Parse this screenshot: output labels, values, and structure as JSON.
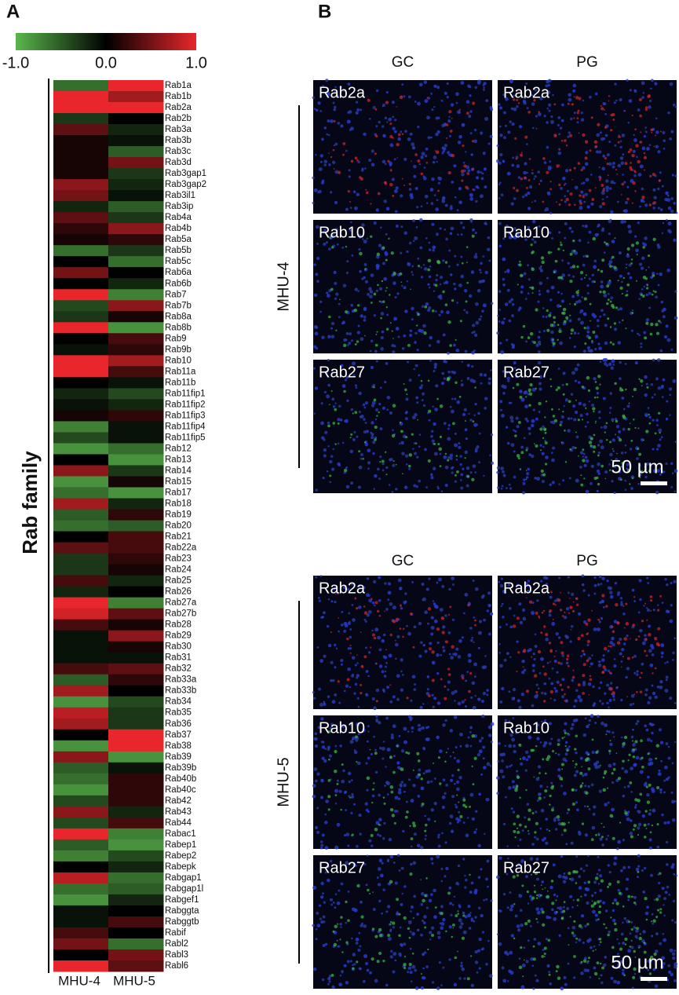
{
  "chart_data": {
    "type": "heatmap",
    "panel_label": "A",
    "y_label": "Rab family",
    "colorscale": [
      "#5ab74c",
      "#000000",
      "#e8262b"
    ],
    "zlim": [
      -1,
      1
    ],
    "zticks": [
      {
        "value": -1,
        "label": "-1.0"
      },
      {
        "value": 0,
        "label": "0.0"
      },
      {
        "value": 1,
        "label": "1.0"
      }
    ],
    "columns": [
      "MHU-4",
      "MHU-5"
    ],
    "categories": [
      "Rab1a",
      "Rab1b",
      "Rab2a",
      "Rab2b",
      "Rab3a",
      "Rab3b",
      "Rab3c",
      "Rab3d",
      "Rab3gap1",
      "Rab3gap2",
      "Rab3il1",
      "Rab3ip",
      "Rab4a",
      "Rab4b",
      "Rab5a",
      "Rab5b",
      "Rab5c",
      "Rab6a",
      "Rab6b",
      "Rab7",
      "Rab7b",
      "Rab8a",
      "Rab8b",
      "Rab9",
      "Rab9b",
      "Rab10",
      "Rab11a",
      "Rab11b",
      "Rab11fip1",
      "Rab11fip2",
      "Rab11fip3",
      "Rab11fip4",
      "Rab11fip5",
      "Rab12",
      "Rab13",
      "Rab14",
      "Rab15",
      "Rab17",
      "Rab18",
      "Rab19",
      "Rab20",
      "Rab21",
      "Rab22a",
      "Rab23",
      "Rab24",
      "Rab25",
      "Rab26",
      "Rab27a",
      "Rab27b",
      "Rab28",
      "Rab29",
      "Rab30",
      "Rab31",
      "Rab32",
      "Rab33a",
      "Rab33b",
      "Rab34",
      "Rab35",
      "Rab36",
      "Rab37",
      "Rab38",
      "Rab39",
      "Rab39b",
      "Rab40b",
      "Rab40c",
      "Rab42",
      "Rab43",
      "Rab44",
      "Rabac1",
      "Rabep1",
      "Rabep2",
      "Rabepk",
      "Rabgap1",
      "Rabgap1l",
      "Rabgef1",
      "Rabggta",
      "Rabggtb",
      "Rabif",
      "Rabl2",
      "Rabl3",
      "Rabl6"
    ],
    "values": [
      [
        -0.6,
        1.0
      ],
      [
        1.0,
        0.7
      ],
      [
        1.0,
        1.0
      ],
      [
        -0.3,
        0.0
      ],
      [
        0.4,
        -0.2
      ],
      [
        0.1,
        -0.1
      ],
      [
        0.1,
        -0.5
      ],
      [
        0.1,
        0.5
      ],
      [
        0.1,
        -0.3
      ],
      [
        0.6,
        -0.2
      ],
      [
        0.5,
        -0.1
      ],
      [
        -0.2,
        -0.5
      ],
      [
        0.4,
        -0.3
      ],
      [
        0.2,
        0.6
      ],
      [
        0.1,
        0.2
      ],
      [
        -0.6,
        -0.3
      ],
      [
        0.0,
        -0.6
      ],
      [
        0.5,
        0.0
      ],
      [
        0.0,
        -0.2
      ],
      [
        1.0,
        -0.7
      ],
      [
        -0.4,
        0.6
      ],
      [
        -0.3,
        0.1
      ],
      [
        1.0,
        -0.8
      ],
      [
        0.0,
        0.3
      ],
      [
        -0.1,
        0.2
      ],
      [
        1.0,
        0.7
      ],
      [
        1.0,
        0.3
      ],
      [
        0.0,
        -0.1
      ],
      [
        -0.2,
        -0.4
      ],
      [
        -0.1,
        -0.2
      ],
      [
        0.1,
        0.2
      ],
      [
        -0.7,
        -0.1
      ],
      [
        -0.4,
        -0.1
      ],
      [
        -0.8,
        -0.6
      ],
      [
        0.0,
        -0.8
      ],
      [
        0.6,
        -0.3
      ],
      [
        -0.8,
        0.1
      ],
      [
        -0.6,
        -0.8
      ],
      [
        0.7,
        -0.2
      ],
      [
        -0.5,
        0.2
      ],
      [
        -0.6,
        -0.5
      ],
      [
        0.0,
        0.3
      ],
      [
        0.4,
        0.3
      ],
      [
        -0.3,
        0.2
      ],
      [
        -0.3,
        0.1
      ],
      [
        0.3,
        -0.2
      ],
      [
        -0.2,
        0.0
      ],
      [
        1.0,
        -0.7
      ],
      [
        0.9,
        0.4
      ],
      [
        0.3,
        0.1
      ],
      [
        -0.1,
        0.6
      ],
      [
        -0.1,
        0.1
      ],
      [
        -0.1,
        -0.1
      ],
      [
        0.3,
        0.4
      ],
      [
        -0.5,
        0.2
      ],
      [
        0.7,
        0.0
      ],
      [
        -0.8,
        -0.4
      ],
      [
        0.8,
        -0.3
      ],
      [
        0.7,
        -0.3
      ],
      [
        0.0,
        1.0
      ],
      [
        -0.8,
        1.0
      ],
      [
        0.6,
        -0.8
      ],
      [
        -0.5,
        -0.1
      ],
      [
        -0.6,
        0.2
      ],
      [
        -0.8,
        0.2
      ],
      [
        -0.4,
        0.2
      ],
      [
        0.6,
        -0.2
      ],
      [
        -0.4,
        0.3
      ],
      [
        1.0,
        -0.7
      ],
      [
        -0.5,
        -0.8
      ],
      [
        -0.7,
        -0.4
      ],
      [
        0.0,
        -0.2
      ],
      [
        0.8,
        -0.6
      ],
      [
        -0.6,
        -0.5
      ],
      [
        -0.8,
        -0.2
      ],
      [
        -0.1,
        0.0
      ],
      [
        -0.1,
        0.3
      ],
      [
        0.3,
        0.0
      ],
      [
        0.5,
        -0.6
      ],
      [
        0.0,
        0.5
      ],
      [
        1.0,
        0.4
      ]
    ]
  },
  "panel_b": {
    "label": "B",
    "groups": [
      {
        "name": "MHU-4",
        "columns": [
          "GC",
          "PG"
        ],
        "rows": [
          "Rab2a",
          "Rab10",
          "Rab27"
        ],
        "scale_bar": "50 µm"
      },
      {
        "name": "MHU-5",
        "columns": [
          "GC",
          "PG"
        ],
        "rows": [
          "Rab2a",
          "Rab10",
          "Rab27"
        ],
        "scale_bar": "50 µm"
      }
    ]
  }
}
